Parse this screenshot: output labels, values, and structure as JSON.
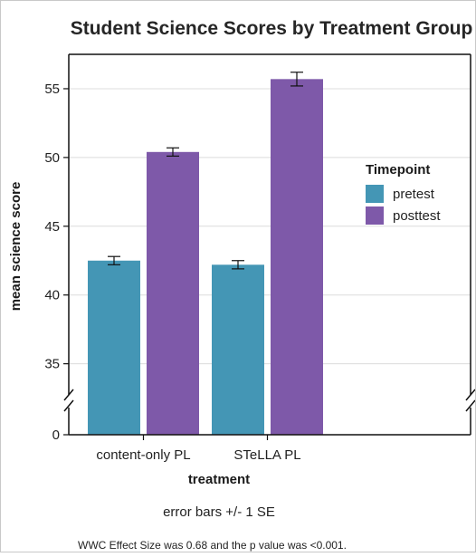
{
  "chart_data": {
    "type": "bar",
    "title": "Student Science Scores by Treatment Group",
    "xlabel": "treatment",
    "ylabel": "mean science score",
    "categories": [
      "content-only PL",
      "STeLLA PL"
    ],
    "series": [
      {
        "name": "pretest",
        "color": "#4496b5",
        "values": [
          42.5,
          42.2
        ],
        "se": [
          0.3,
          0.3
        ]
      },
      {
        "name": "posttest",
        "color": "#7e59a9",
        "values": [
          50.4,
          55.7
        ],
        "se": [
          0.3,
          0.5
        ]
      }
    ],
    "y_ticks": [
      0,
      35,
      40,
      45,
      50,
      55
    ],
    "ylim": [
      33,
      57.5
    ],
    "axis_break": true,
    "grid": true,
    "legend": {
      "title": "Timepoint",
      "position": "right"
    },
    "note": "error bars +/- 1 SE"
  },
  "footnote": "WWC Effect Size was 0.68 and the p value was <0.001."
}
